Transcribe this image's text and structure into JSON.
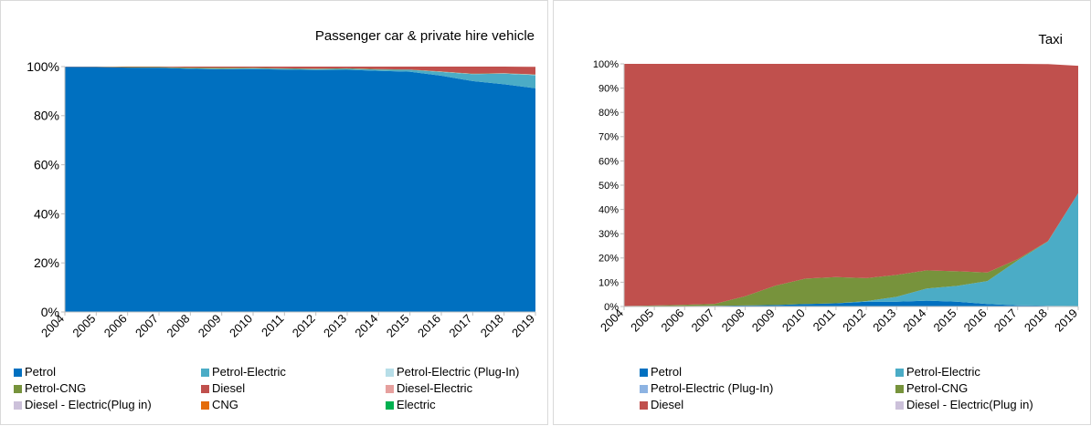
{
  "chart_data": [
    {
      "type": "area",
      "stacked": true,
      "title": "Passenger car & private hire vehicle",
      "categories": [
        "2004",
        "2005",
        "2006",
        "2007",
        "2008",
        "2009",
        "2010",
        "2011",
        "2012",
        "2013",
        "2014",
        "2015",
        "2016",
        "2017",
        "2018",
        "2019"
      ],
      "y_tick_labels": [
        "0%",
        "20%",
        "40%",
        "60%",
        "80%",
        "100%"
      ],
      "y_ticks": [
        0,
        20,
        40,
        60,
        80,
        100
      ],
      "ylim": [
        0,
        100
      ],
      "legend_position": "bottom",
      "series": [
        {
          "name": "Petrol",
          "color": "#0070C0",
          "values": [
            99.9,
            99.8,
            99.6,
            99.5,
            99.1,
            98.9,
            99.0,
            98.8,
            98.6,
            98.7,
            98.3,
            97.9,
            96.3,
            94.1,
            92.8,
            91.2
          ]
        },
        {
          "name": "Petrol-Electric",
          "color": "#4BACC6",
          "values": [
            0,
            0,
            0,
            0.1,
            0.2,
            0.3,
            0.3,
            0.3,
            0.4,
            0.4,
            0.5,
            0.8,
            1.5,
            2.8,
            4.3,
            5.3
          ]
        },
        {
          "name": "Petrol-Electric (Plug-In)",
          "color": "#B7DEE8",
          "values": [
            0,
            0,
            0,
            0,
            0,
            0,
            0,
            0,
            0,
            0,
            0,
            0,
            0.1,
            0.1,
            0.1,
            0.2
          ]
        },
        {
          "name": "Petrol-CNG",
          "color": "#77933C",
          "values": [
            0,
            0.1,
            0.2,
            0.2,
            0.3,
            0.3,
            0.2,
            0.2,
            0.2,
            0.2,
            0.2,
            0.1,
            0.1,
            0.1,
            0.1,
            0.1
          ]
        },
        {
          "name": "Diesel",
          "color": "#C0504D",
          "values": [
            0.1,
            0.1,
            0.2,
            0.2,
            0.4,
            0.5,
            0.5,
            0.7,
            0.8,
            0.7,
            1.0,
            1.2,
            2.0,
            2.9,
            2.7,
            3.1
          ]
        },
        {
          "name": "Diesel-Electric",
          "color": "#E6A09E",
          "values": [
            0,
            0,
            0,
            0,
            0,
            0,
            0,
            0,
            0,
            0,
            0,
            0,
            0,
            0,
            0,
            0.1
          ]
        },
        {
          "name": "Diesel - Electric(Plug in)",
          "color": "#CCC1DA",
          "values": [
            0,
            0,
            0,
            0,
            0,
            0,
            0,
            0,
            0,
            0,
            0,
            0,
            0,
            0,
            0,
            0
          ]
        },
        {
          "name": "CNG",
          "color": "#E46C0A",
          "values": [
            0,
            0,
            0,
            0,
            0,
            0,
            0,
            0,
            0,
            0,
            0,
            0,
            0,
            0,
            0,
            0
          ]
        },
        {
          "name": "Electric",
          "color": "#00B050",
          "values": [
            0,
            0,
            0,
            0,
            0,
            0,
            0,
            0,
            0,
            0,
            0,
            0,
            0,
            0,
            0,
            0
          ]
        }
      ]
    },
    {
      "type": "area",
      "stacked": true,
      "title": "Taxi",
      "categories": [
        "2004",
        "2005",
        "2006",
        "2007",
        "2008",
        "2009",
        "2010",
        "2011",
        "2012",
        "2013",
        "2014",
        "2015",
        "2016",
        "2017",
        "2018",
        "2019"
      ],
      "y_tick_labels": [
        "0%",
        "10%",
        "20%",
        "30%",
        "40%",
        "50%",
        "60%",
        "70%",
        "80%",
        "90%",
        "100%"
      ],
      "y_ticks": [
        0,
        10,
        20,
        30,
        40,
        50,
        60,
        70,
        80,
        90,
        100
      ],
      "ylim": [
        0,
        100
      ],
      "legend_position": "bottom",
      "series": [
        {
          "name": "Petrol",
          "color": "#0070C0",
          "values": [
            0.2,
            0.2,
            0.2,
            0.3,
            0.4,
            0.6,
            1.0,
            1.3,
            2.0,
            2.0,
            2.4,
            2.0,
            1.0,
            0.5,
            0.3,
            0.2
          ]
        },
        {
          "name": "Petrol-Electric",
          "color": "#4BACC6",
          "values": [
            0,
            0,
            0,
            0,
            0,
            0,
            0,
            0,
            0.2,
            2.0,
            5.0,
            6.5,
            9.5,
            18.5,
            26.5,
            46.5
          ]
        },
        {
          "name": "Petrol-Electric (Plug-In)",
          "color": "#8DB3E2",
          "values": [
            0,
            0,
            0,
            0,
            0,
            0,
            0,
            0,
            0,
            0,
            0,
            0,
            0,
            0,
            0,
            0
          ]
        },
        {
          "name": "Petrol-CNG",
          "color": "#77933C",
          "values": [
            0,
            0.2,
            0.5,
            0.8,
            3.8,
            8.0,
            10.5,
            10.8,
            9.5,
            9.0,
            7.5,
            6.0,
            3.5,
            0.5,
            0.1,
            0
          ]
        },
        {
          "name": "Diesel",
          "color": "#C0504D",
          "values": [
            99.8,
            99.6,
            99.3,
            98.9,
            95.8,
            91.4,
            88.5,
            87.9,
            88.3,
            87.0,
            85.1,
            85.5,
            86.0,
            80.5,
            73.0,
            52.5
          ]
        },
        {
          "name": "Diesel - Electric(Plug in)",
          "color": "#CCC1DA",
          "values": [
            0,
            0,
            0,
            0,
            0,
            0,
            0,
            0,
            0,
            0,
            0,
            0,
            0,
            0,
            0,
            0
          ]
        }
      ]
    }
  ]
}
